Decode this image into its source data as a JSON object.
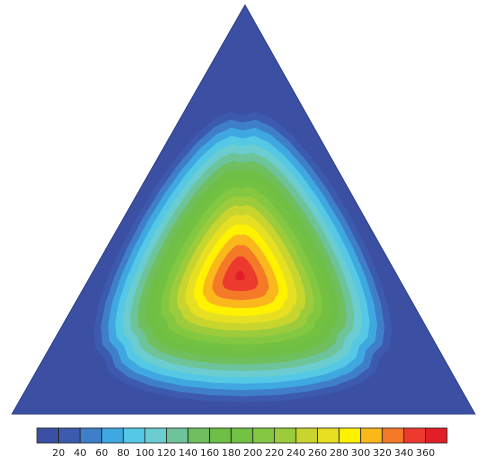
{
  "chart_data": {
    "type": "heatmap",
    "plot_shape": "triangle",
    "title": "",
    "xlabel": "",
    "ylabel": "",
    "peak_value": 360,
    "colorbar": {
      "orientation": "horizontal",
      "placement": "bottom",
      "tick_labels": [
        "20",
        "40",
        "60",
        "80",
        "100",
        "120",
        "140",
        "160",
        "180",
        "200",
        "220",
        "240",
        "260",
        "280",
        "300",
        "320",
        "340",
        "360"
      ],
      "levels": [
        {
          "max": 20,
          "color": "#3b4fa3"
        },
        {
          "max": 40,
          "color": "#3c5aae"
        },
        {
          "max": 60,
          "color": "#3f7fc9"
        },
        {
          "max": 80,
          "color": "#3fa8e0"
        },
        {
          "max": 100,
          "color": "#55c8e6"
        },
        {
          "max": 120,
          "color": "#6ccdd0"
        },
        {
          "max": 140,
          "color": "#6ec49a"
        },
        {
          "max": 160,
          "color": "#6fbf5f"
        },
        {
          "max": 180,
          "color": "#6fbf47"
        },
        {
          "max": 200,
          "color": "#72c142"
        },
        {
          "max": 220,
          "color": "#84c740"
        },
        {
          "max": 240,
          "color": "#9ccb3c"
        },
        {
          "max": 260,
          "color": "#c8d52f"
        },
        {
          "max": 280,
          "color": "#e6df22"
        },
        {
          "max": 300,
          "color": "#fff200"
        },
        {
          "max": 320,
          "color": "#fbb81c"
        },
        {
          "max": 340,
          "color": "#f47a28"
        },
        {
          "max": 360,
          "color": "#ec3b2e"
        },
        {
          "max": 380,
          "color": "#e21e26"
        }
      ]
    }
  }
}
